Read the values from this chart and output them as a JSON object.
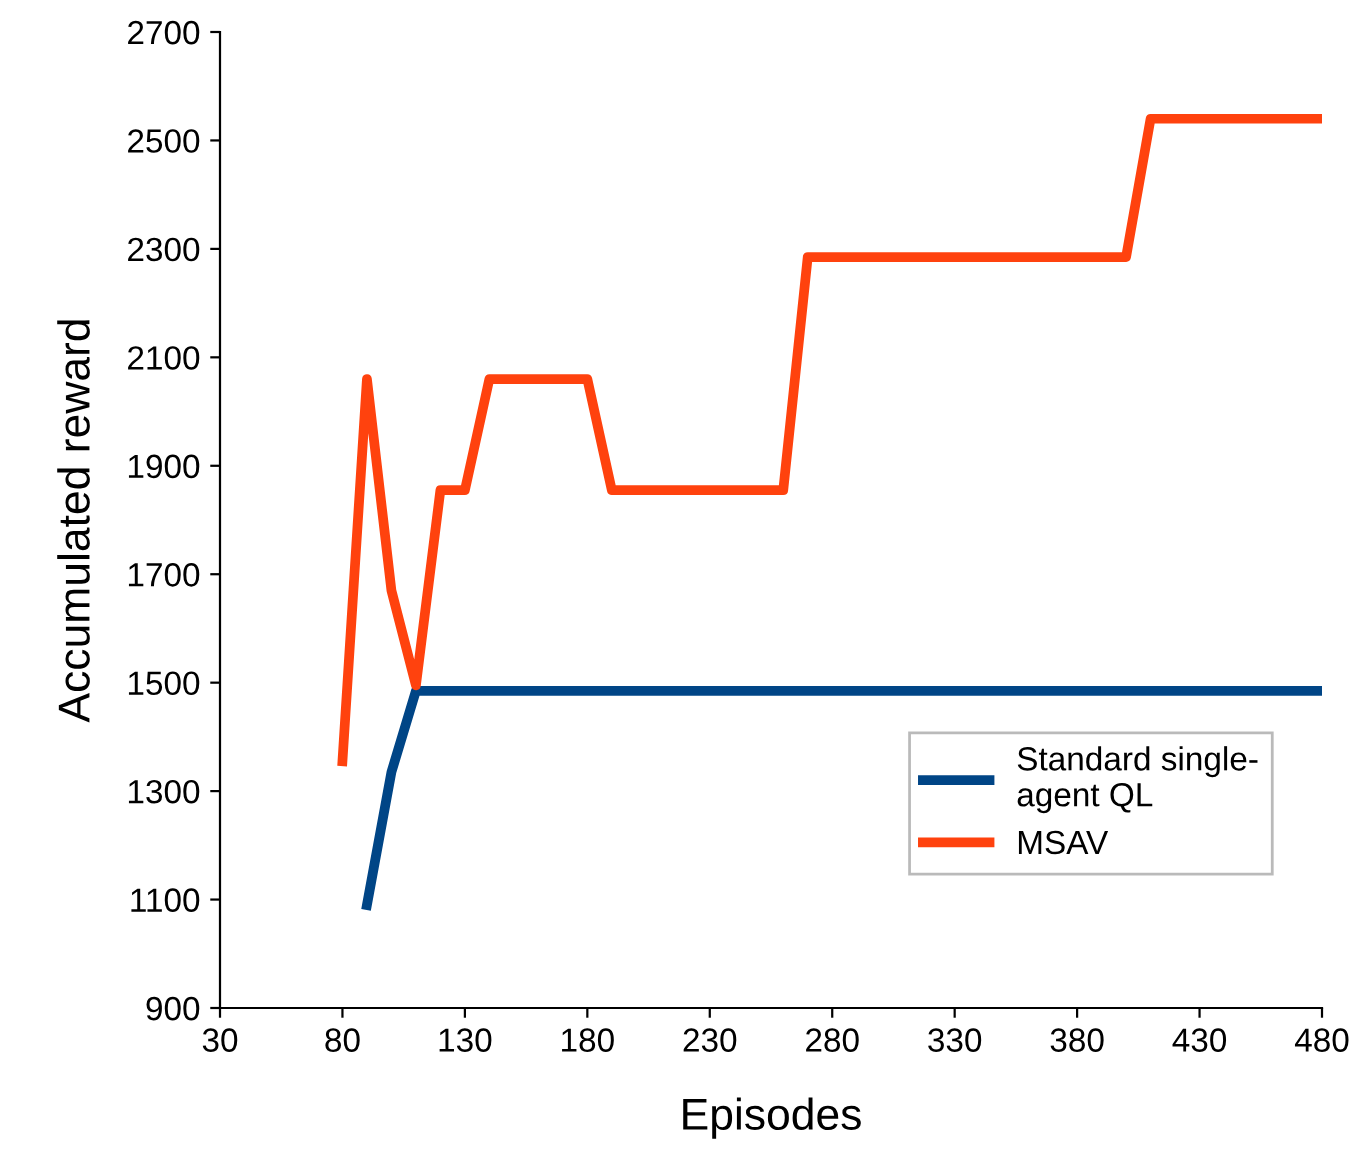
{
  "chart_data": {
    "type": "line",
    "xlabel": "Episodes",
    "ylabel": "Accumulated reward",
    "xlim": [
      30,
      480
    ],
    "xticks": [
      30,
      80,
      130,
      180,
      230,
      280,
      330,
      380,
      430,
      480
    ],
    "ylim": [
      900,
      2700
    ],
    "yticks": [
      900,
      1100,
      1300,
      1500,
      1700,
      1900,
      2100,
      2300,
      2500,
      2700
    ],
    "grid": false,
    "legend": "bottom right",
    "marker": "none",
    "line_style": "solid",
    "series": [
      {
        "name": "Standard single-\nagent QL",
        "color": "#004586",
        "x": [
          90,
          100,
          110,
          480
        ],
        "values": [
          1090,
          1335,
          1485,
          1485
        ]
      },
      {
        "name": "MSAV",
        "color": "#ff420e",
        "x": [
          80,
          90,
          100,
          110,
          120,
          130,
          140,
          180,
          190,
          260,
          270,
          400,
          410,
          480
        ],
        "values": [
          1355,
          2060,
          1670,
          1495,
          1855,
          1855,
          2060,
          2060,
          1855,
          1855,
          2285,
          2285,
          2540,
          2540
        ]
      }
    ]
  }
}
